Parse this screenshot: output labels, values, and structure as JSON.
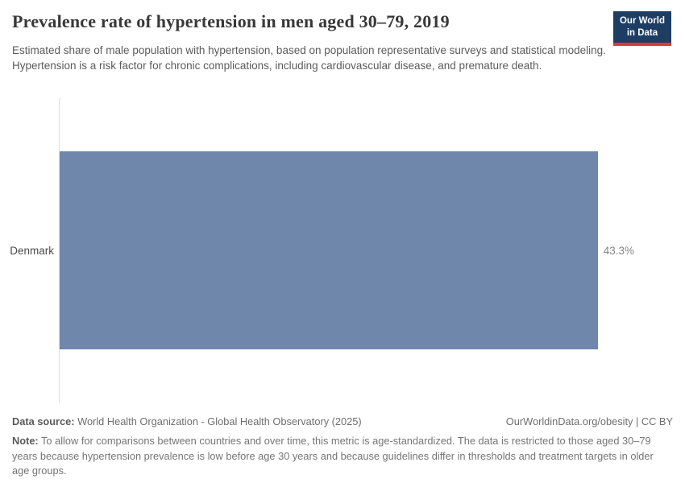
{
  "header": {
    "title": "Prevalence rate of hypertension in men aged 30–79, 2019",
    "subtitle": "Estimated share of male population with hypertension, based on population representative surveys and statistical modeling. Hypertension is a risk factor for chronic complications, including cardiovascular disease, and premature death.",
    "logo": {
      "line1": "Our World",
      "line2": "in Data"
    }
  },
  "chart_data": {
    "type": "bar",
    "orientation": "horizontal",
    "categories": [
      "Denmark"
    ],
    "values": [
      43.3
    ],
    "value_labels": [
      "43.3%"
    ],
    "unit": "%",
    "xlim": [
      0,
      43.3
    ],
    "grid": false,
    "legend": "none",
    "title": "Prevalence rate of hypertension in men aged 30–79, 2019"
  },
  "footer": {
    "source_label": "Data source:",
    "source_text": "World Health Organization - Global Health Observatory (2025)",
    "attribution": "OurWorldinData.org/obesity | CC BY",
    "note_label": "Note:",
    "note_text": "To allow for comparisons between countries and over time, this metric is age-standardized. The data is restricted to those aged 30–79 years because hypertension prevalence is low before age 30 years and because guidelines differ in thresholds and treatment targets in older age groups."
  },
  "colors": {
    "bar": "#6e87ab",
    "logo_bg": "#1d3d63",
    "logo_accent": "#d93a34",
    "axis": "#dddddd",
    "title_text": "#383838"
  }
}
